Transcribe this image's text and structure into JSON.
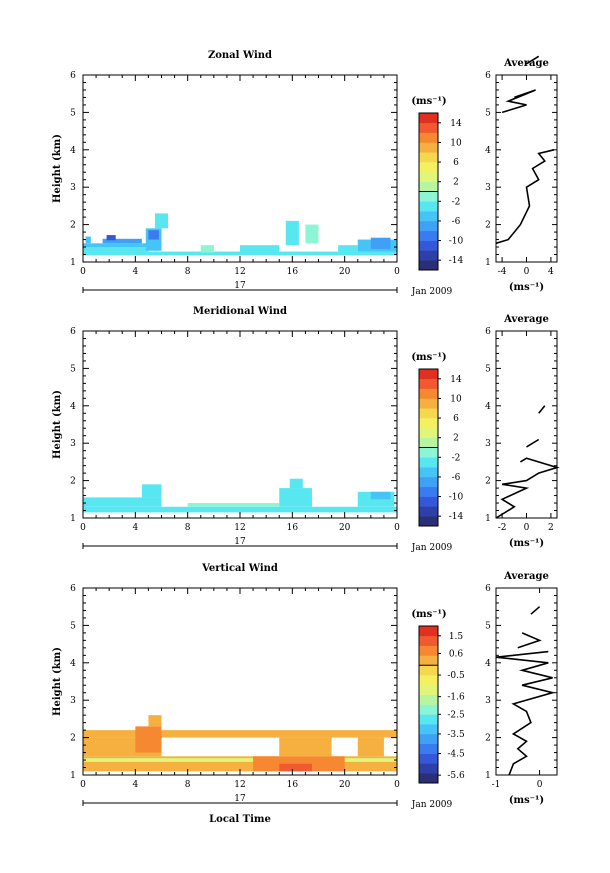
{
  "page": {
    "xlabel": "Local Time",
    "date_label": "Jan 2009",
    "day_label": "17"
  },
  "chart_data": [
    {
      "type": "heatmap",
      "title": "Zonal Wind",
      "ylabel": "Height (km)",
      "xticks": [
        "0",
        "4",
        "8",
        "12",
        "16",
        "20",
        "0"
      ],
      "xlim": [
        0,
        24
      ],
      "yticks": [
        "1",
        "2",
        "3",
        "4",
        "5",
        "6"
      ],
      "ylim": [
        1,
        6
      ],
      "colorbar": {
        "unit": "(ms⁻¹)",
        "ticks": [
          "14",
          "10",
          "6",
          "2",
          "-2",
          "-6",
          "-10",
          "-14"
        ],
        "range": [
          -16,
          16
        ],
        "colors": [
          "#2b2f78",
          "#2f3fa8",
          "#3558d8",
          "#3b7bf0",
          "#3fa0f5",
          "#45c4f5",
          "#58e6f0",
          "#8df5d5",
          "#b8f5a0",
          "#e0f57a",
          "#f5f060",
          "#f5d850",
          "#f5b040",
          "#f58830",
          "#f05a30",
          "#e03020"
        ]
      },
      "data": [
        {
          "x0": 0,
          "x1": 24,
          "y0": 1.18,
          "y1": 1.28,
          "v": -3
        },
        {
          "x0": 0,
          "x1": 5,
          "y0": 1.28,
          "y1": 1.4,
          "v": -3
        },
        {
          "x0": 0,
          "x1": 5,
          "y0": 1.4,
          "y1": 1.5,
          "v": -6
        },
        {
          "x0": 1.5,
          "x1": 4.5,
          "y0": 1.5,
          "y1": 1.62,
          "v": -8
        },
        {
          "x0": 1.8,
          "x1": 2.5,
          "y0": 1.58,
          "y1": 1.72,
          "v": -11
        },
        {
          "x0": 0.2,
          "x1": 0.6,
          "y0": 1.5,
          "y1": 1.68,
          "v": -6
        },
        {
          "x0": 4.8,
          "x1": 6,
          "y0": 1.3,
          "y1": 1.9,
          "v": -5
        },
        {
          "x0": 5,
          "x1": 5.8,
          "y0": 1.6,
          "y1": 1.85,
          "v": -9
        },
        {
          "x0": 5.5,
          "x1": 6.5,
          "y0": 1.9,
          "y1": 2.3,
          "v": -4
        },
        {
          "x0": 9,
          "x1": 10,
          "y0": 1.25,
          "y1": 1.45,
          "v": -2
        },
        {
          "x0": 12,
          "x1": 15,
          "y0": 1.28,
          "y1": 1.45,
          "v": -4
        },
        {
          "x0": 15.5,
          "x1": 16.5,
          "y0": 1.45,
          "y1": 2.1,
          "v": -3
        },
        {
          "x0": 17,
          "x1": 18,
          "y0": 1.5,
          "y1": 2.0,
          "v": -2
        },
        {
          "x0": 21,
          "x1": 24,
          "y0": 1.28,
          "y1": 1.6,
          "v": -5
        },
        {
          "x0": 22,
          "x1": 23.5,
          "y0": 1.35,
          "y1": 1.65,
          "v": -8
        },
        {
          "x0": 19.5,
          "x1": 21,
          "y0": 1.28,
          "y1": 1.45,
          "v": -4
        }
      ],
      "profile": {
        "title": "Average",
        "xticks": [
          "-4",
          "0",
          "4"
        ],
        "xlim": [
          -5,
          5
        ],
        "xlabel": "(ms⁻¹)",
        "segments": [
          [
            [
              -5,
              1.5
            ],
            [
              -3,
              1.6
            ],
            [
              -1,
              2
            ],
            [
              0.5,
              2.5
            ],
            [
              0,
              3
            ],
            [
              2,
              3.2
            ],
            [
              1,
              3.5
            ],
            [
              3,
              3.7
            ],
            [
              2,
              3.9
            ],
            [
              4.5,
              4.0
            ]
          ],
          [
            [
              -4,
              5.0
            ],
            [
              0,
              5.2
            ],
            [
              -3,
              5.3
            ],
            [
              1.5,
              5.6
            ],
            [
              -2,
              5.4
            ]
          ],
          [
            [
              0,
              6.3
            ],
            [
              2,
              6.5
            ]
          ]
        ]
      }
    },
    {
      "type": "heatmap",
      "title": "Meridional Wind",
      "ylabel": "Height (km)",
      "xticks": [
        "0",
        "4",
        "8",
        "12",
        "16",
        "20",
        "0"
      ],
      "xlim": [
        0,
        24
      ],
      "yticks": [
        "1",
        "2",
        "3",
        "4",
        "5",
        "6"
      ],
      "ylim": [
        1,
        6
      ],
      "colorbar": {
        "unit": "(ms⁻¹)",
        "ticks": [
          "14",
          "10",
          "6",
          "2",
          "-2",
          "-6",
          "-10",
          "-14"
        ],
        "range": [
          -16,
          16
        ],
        "colors": [
          "#2b2f78",
          "#2f3fa8",
          "#3558d8",
          "#3b7bf0",
          "#3fa0f5",
          "#45c4f5",
          "#58e6f0",
          "#8df5d5",
          "#b8f5a0",
          "#e0f57a",
          "#f5f060",
          "#f5d850",
          "#f5b040",
          "#f58830",
          "#f05a30",
          "#e03020"
        ]
      },
      "data": [
        {
          "x0": 0,
          "x1": 24,
          "y0": 1.15,
          "y1": 1.3,
          "v": -3
        },
        {
          "x0": 0,
          "x1": 6,
          "y0": 1.3,
          "y1": 1.55,
          "v": -3
        },
        {
          "x0": 4.5,
          "x1": 6,
          "y0": 1.55,
          "y1": 1.9,
          "v": -3
        },
        {
          "x0": 8,
          "x1": 15,
          "y0": 1.3,
          "y1": 1.4,
          "v": -2
        },
        {
          "x0": 15,
          "x1": 17.5,
          "y0": 1.3,
          "y1": 1.8,
          "v": -3
        },
        {
          "x0": 15.8,
          "x1": 16.8,
          "y0": 1.8,
          "y1": 2.05,
          "v": -3
        },
        {
          "x0": 21,
          "x1": 23.8,
          "y0": 1.3,
          "y1": 1.7,
          "v": -3
        },
        {
          "x0": 22,
          "x1": 23.5,
          "y0": 1.5,
          "y1": 1.7,
          "v": -6
        }
      ],
      "profile": {
        "title": "Average",
        "xticks": [
          "-2",
          "0",
          "2"
        ],
        "xlim": [
          -2.5,
          2.5
        ],
        "xlabel": "(ms⁻¹)",
        "segments": [
          [
            [
              -2.5,
              1.0
            ],
            [
              -1,
              1.3
            ],
            [
              -2,
              1.5
            ],
            [
              0,
              1.8
            ],
            [
              -2,
              1.9
            ],
            [
              0,
              2.0
            ],
            [
              1,
              2.2
            ],
            [
              2.5,
              2.35
            ],
            [
              0,
              2.6
            ],
            [
              -0.5,
              2.5
            ]
          ],
          [
            [
              0,
              2.9
            ],
            [
              1,
              3.1
            ]
          ],
          [
            [
              1,
              3.8
            ],
            [
              1.5,
              4.0
            ]
          ]
        ]
      }
    },
    {
      "type": "heatmap",
      "title": "Vertical Wind",
      "ylabel": "Height (km)",
      "xticks": [
        "0",
        "4",
        "8",
        "12",
        "16",
        "20",
        "0"
      ],
      "xlim": [
        0,
        24
      ],
      "yticks": [
        "1",
        "2",
        "3",
        "4",
        "5",
        "6"
      ],
      "ylim": [
        1,
        6
      ],
      "colorbar": {
        "unit": "(ms⁻¹)",
        "ticks": [
          "1.5",
          "0.6",
          "-0.5",
          "-1.6",
          "-2.5",
          "-3.5",
          "-4.5",
          "-5.6"
        ],
        "range": [
          -6,
          2
        ],
        "colors": [
          "#2b2f78",
          "#2f3fa8",
          "#3558d8",
          "#3b7bf0",
          "#3fa0f5",
          "#45c4f5",
          "#58e6f0",
          "#8df5d5",
          "#b8f5a0",
          "#e0f57a",
          "#f5f060",
          "#f5d850",
          "#f5b040",
          "#f58830",
          "#f05a30",
          "#e03020"
        ]
      },
      "data": [
        {
          "x0": 0,
          "x1": 24,
          "y0": 2.0,
          "y1": 2.2,
          "v": 0
        },
        {
          "x0": 0,
          "x1": 6,
          "y0": 1.5,
          "y1": 2.0,
          "v": 0
        },
        {
          "x0": 0,
          "x1": 24,
          "y0": 1.1,
          "y1": 1.5,
          "v": 0
        },
        {
          "x0": 0,
          "x1": 24,
          "y0": 1.35,
          "y1": 1.45,
          "v": -1.2
        },
        {
          "x0": 4,
          "x1": 6,
          "y0": 1.6,
          "y1": 2.3,
          "v": 0.8
        },
        {
          "x0": 5,
          "x1": 6,
          "y0": 2.3,
          "y1": 2.6,
          "v": 0.3
        },
        {
          "x0": 13,
          "x1": 20,
          "y0": 1.1,
          "y1": 1.5,
          "v": 0.8
        },
        {
          "x0": 15,
          "x1": 17.5,
          "y0": 1.1,
          "y1": 1.3,
          "v": 1.2
        },
        {
          "x0": 15,
          "x1": 19,
          "y0": 1.5,
          "y1": 2.0,
          "v": 0
        },
        {
          "x0": 21,
          "x1": 23,
          "y0": 1.5,
          "y1": 2.0,
          "v": 0
        }
      ],
      "profile": {
        "title": "Average",
        "xticks": [
          "-1",
          "0"
        ],
        "xlim": [
          -1,
          0.4
        ],
        "xlabel": "(ms⁻¹)",
        "segments": [
          [
            [
              -0.7,
              1.0
            ],
            [
              -0.6,
              1.3
            ],
            [
              -0.3,
              1.5
            ],
            [
              -0.5,
              1.7
            ],
            [
              -0.3,
              1.9
            ],
            [
              -0.6,
              2.1
            ],
            [
              -0.2,
              2.4
            ],
            [
              -0.3,
              2.7
            ],
            [
              -0.6,
              2.9
            ],
            [
              0.3,
              3.2
            ],
            [
              -0.4,
              3.4
            ],
            [
              0.3,
              3.6
            ],
            [
              -0.4,
              3.8
            ],
            [
              0.2,
              4.0
            ],
            [
              -1,
              4.15
            ],
            [
              0.2,
              4.3
            ]
          ],
          [
            [
              -0.5,
              4.4
            ],
            [
              0,
              4.6
            ],
            [
              -0.4,
              4.8
            ]
          ],
          [
            [
              -0.2,
              5.3
            ],
            [
              0,
              5.5
            ]
          ]
        ]
      }
    }
  ]
}
